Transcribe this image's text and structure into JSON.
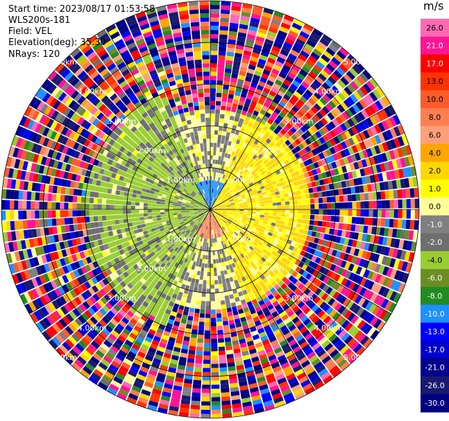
{
  "header": {
    "start_time": "Start time: 2023/08/17 01:53:58",
    "instrument": "WLS200s-181",
    "field": "Field: VEL",
    "elevation": "Elevation(deg): 35.30",
    "nrays": "NRays: 120"
  },
  "colorbar": {
    "unit": "m/s",
    "ticks": [
      "26.0",
      "21.0",
      "17.0",
      "13.0",
      "10.0",
      "8.0",
      "6.0",
      "4.0",
      "2.0",
      "1.0",
      "0.0",
      "-1.0",
      "-2.0",
      "-4.0",
      "-6.0",
      "-8.0",
      "-10.0",
      "-13.0",
      "-17.0",
      "-21.0",
      "-26.0",
      "-30.0"
    ],
    "colors": [
      "#ff69b4",
      "#ff1493",
      "#ff0000",
      "#ff3300",
      "#ff5a2a",
      "#ff7f50",
      "#ffa07a",
      "#ffa500",
      "#ffd700",
      "#ffff00",
      "#ffff99",
      "#808080",
      "#6e6e6e",
      "#9acd32",
      "#6b8e23",
      "#228b22",
      "#1e90ff",
      "#0000ff",
      "#0000cd",
      "#00008b",
      "#191970",
      "#000080"
    ]
  },
  "chart_data": {
    "type": "ppi",
    "field": "VEL",
    "unit": "m/s",
    "elevation_deg": 35.3,
    "n_rays": 120,
    "range_rings_km": [
      1.0,
      2.0,
      3.0,
      4.0,
      5.0
    ],
    "range_labels": [
      "1.00km",
      "2.00km",
      "3.00km",
      "4.00km",
      "5.00km"
    ],
    "max_range_km": 5.0,
    "sectors": [
      {
        "name": "north-inner",
        "az_from": -30,
        "az_to": 30,
        "r_from": 0.0,
        "r_to": 0.7,
        "v": -9.0
      },
      {
        "name": "south-inner",
        "az_from": 150,
        "az_to": 210,
        "r_from": 0.0,
        "r_to": 0.7,
        "v": 8.5
      },
      {
        "name": "east-positive",
        "az_from": 20,
        "az_to": 160,
        "r_from": 0.4,
        "r_to": 2.2,
        "v": 2.0
      },
      {
        "name": "west-negative",
        "az_from": 200,
        "az_to": 340,
        "r_from": 0.4,
        "r_to": 2.9,
        "v": -2.5
      }
    ]
  }
}
